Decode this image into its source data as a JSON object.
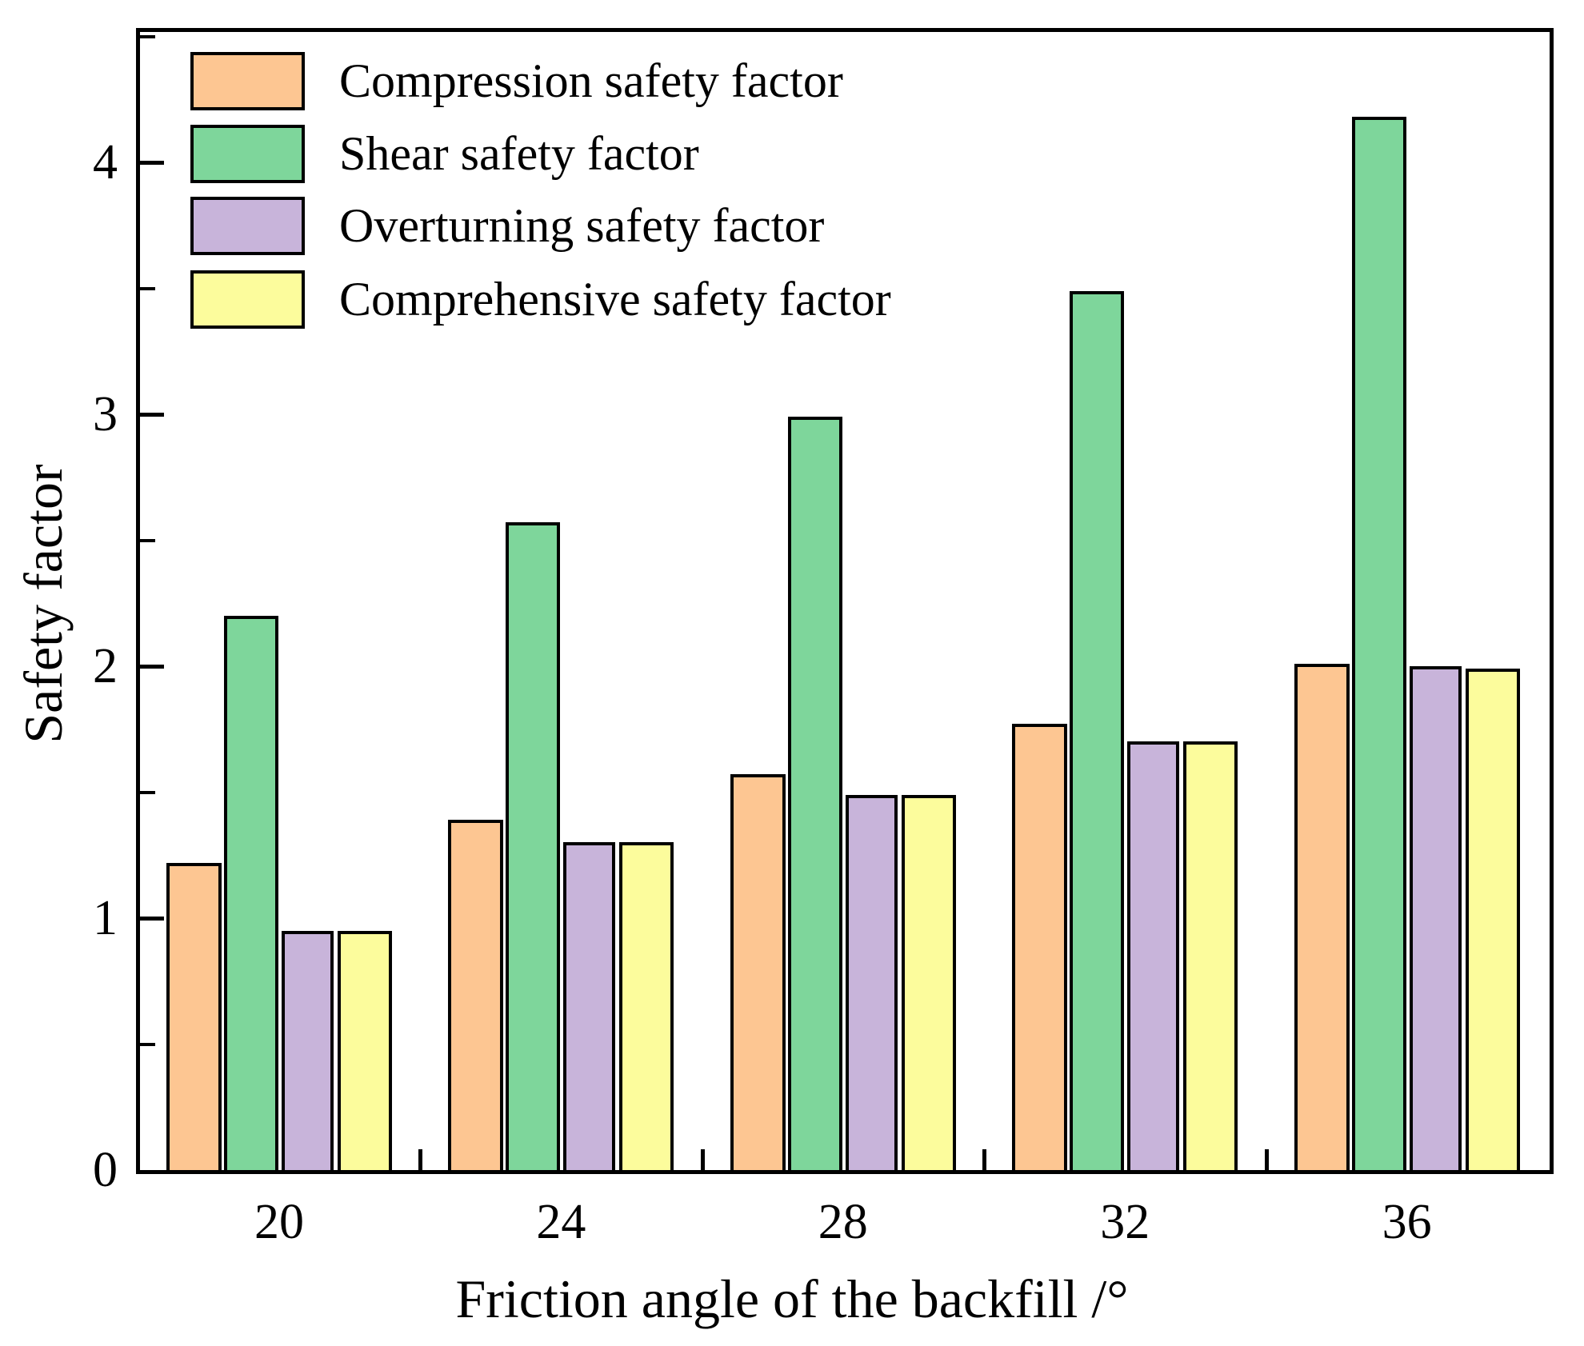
{
  "chart_data": {
    "type": "bar",
    "title": "",
    "xlabel": "Friction angle of the backfill /°",
    "ylabel": "Safety factor",
    "categories": [
      "20",
      "24",
      "28",
      "32",
      "36"
    ],
    "series": [
      {
        "name": "Compression safety factor",
        "color": "#FDC692",
        "values": [
          1.22,
          1.39,
          1.57,
          1.77,
          2.01
        ]
      },
      {
        "name": "Shear safety factor",
        "color": "#7ED69B",
        "values": [
          2.2,
          2.57,
          2.99,
          3.49,
          4.18
        ]
      },
      {
        "name": "Overturning safety factor",
        "color": "#C8B4DA",
        "values": [
          0.95,
          1.3,
          1.49,
          1.7,
          2.0
        ]
      },
      {
        "name": "Comprehensive safety factor",
        "color": "#FCFC9C",
        "values": [
          0.95,
          1.3,
          1.49,
          1.7,
          1.99
        ]
      }
    ],
    "ylim": [
      0,
      4.52
    ],
    "yticks_major": [
      0,
      1,
      2,
      3,
      4
    ],
    "yticks_minor": [
      0.5,
      1.5,
      2.5,
      3.5,
      4.5
    ],
    "grid": false,
    "legend_position": "top-left",
    "bar_border_color": "#000000",
    "axis_color": "#000000",
    "background_color": "#FFFFFF"
  }
}
